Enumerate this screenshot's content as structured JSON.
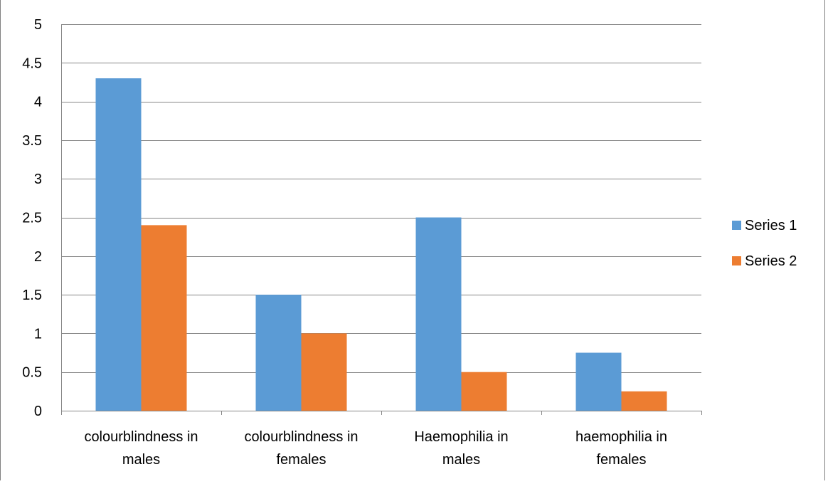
{
  "chart_data": {
    "type": "bar",
    "title": "",
    "xlabel": "",
    "ylabel": "",
    "categories": [
      [
        "colourblindness in",
        "males"
      ],
      [
        "colourblindness in",
        "females"
      ],
      [
        "Haemophilia in",
        "males"
      ],
      [
        "haemophilia in",
        "females"
      ]
    ],
    "series": [
      {
        "name": "Series 1",
        "color": "#5B9BD5",
        "values": [
          4.3,
          1.5,
          2.5,
          0.75
        ]
      },
      {
        "name": "Series 2",
        "color": "#ED7D31",
        "values": [
          2.4,
          1.0,
          0.5,
          0.25
        ]
      }
    ],
    "ylim": [
      0,
      5
    ],
    "yticks": [
      "0",
      "0.5",
      "1",
      "1.5",
      "2",
      "2.5",
      "3",
      "3.5",
      "4",
      "4.5",
      "5"
    ],
    "grid": true,
    "legend_position": "right"
  }
}
